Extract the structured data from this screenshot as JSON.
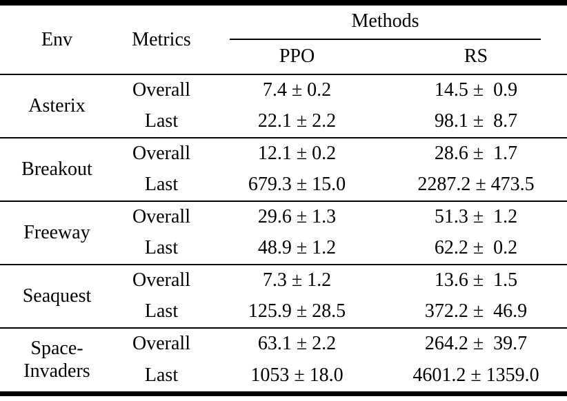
{
  "table": {
    "headers": {
      "env": "Env",
      "metrics": "Metrics",
      "methods": "Methods",
      "ppo": "PPO",
      "rs": "RS"
    },
    "groups": [
      {
        "env": "Asterix",
        "rows": [
          {
            "metric": "Overall",
            "ppo": "7.4 ± 0.2",
            "rs": "14.5 ±  0.9"
          },
          {
            "metric": "Last",
            "ppo": "22.1 ± 2.2",
            "rs": "98.1 ±  8.7"
          }
        ]
      },
      {
        "env": "Breakout",
        "rows": [
          {
            "metric": "Overall",
            "ppo": "12.1 ± 0.2",
            "rs": "28.6 ±  1.7"
          },
          {
            "metric": "Last",
            "ppo": "679.3 ± 15.0",
            "rs": "2287.2 ± 473.5"
          }
        ]
      },
      {
        "env": "Freeway",
        "rows": [
          {
            "metric": "Overall",
            "ppo": "29.6 ± 1.3",
            "rs": "51.3 ±  1.2"
          },
          {
            "metric": "Last",
            "ppo": "48.9 ± 1.2",
            "rs": "62.2 ±  0.2"
          }
        ]
      },
      {
        "env": "Seaquest",
        "rows": [
          {
            "metric": "Overall",
            "ppo": "7.3 ± 1.2",
            "rs": "13.6 ±  1.5"
          },
          {
            "metric": "Last",
            "ppo": "125.9 ± 28.5",
            "rs": "372.2 ±  46.9"
          }
        ]
      },
      {
        "env": "Space-\nInvaders",
        "rows": [
          {
            "metric": "Overall",
            "ppo": "63.1 ± 2.2",
            "rs": "264.2 ±  39.7"
          },
          {
            "metric": "Last",
            "ppo": "1053 ± 18.0",
            "rs": "4601.2 ± 1359.0"
          }
        ]
      }
    ]
  }
}
